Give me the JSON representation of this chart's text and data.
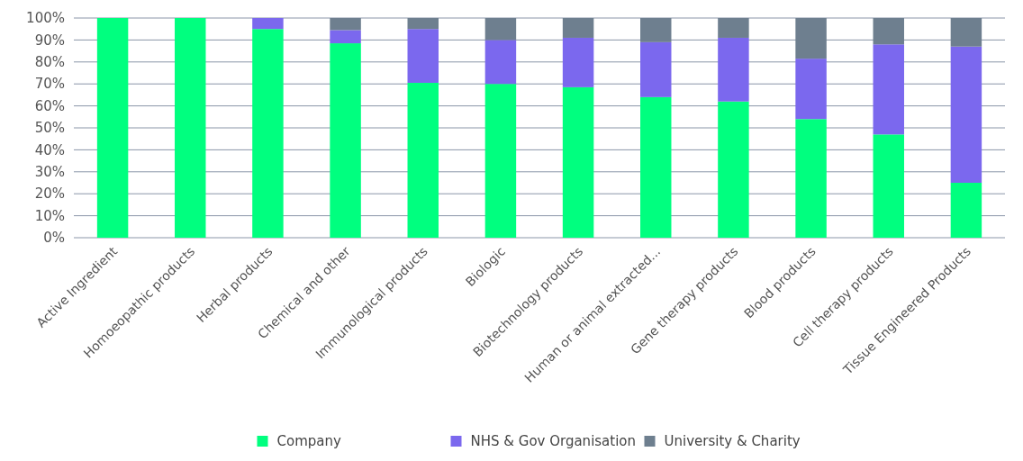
{
  "chart_data": {
    "type": "bar",
    "stacked": true,
    "categories": [
      "Active Ingredient",
      "Homoeopathic products",
      "Herbal products",
      "Chemical and other",
      "Immunological products",
      "Biologic",
      "Biotechnology products",
      "Human or animal extracted...",
      "Gene therapy products",
      "Blood products",
      "Cell therapy products",
      "Tissue Engineered Products"
    ],
    "series": [
      {
        "name": "Company",
        "color": "#00ff7f",
        "values": [
          100,
          100,
          95,
          88.5,
          70.5,
          70,
          68.5,
          64,
          62,
          54,
          47,
          25
        ]
      },
      {
        "name": "NHS & Gov Organisation",
        "color": "#7b68ee",
        "values": [
          0,
          0,
          5,
          6,
          24.5,
          20,
          22.5,
          25,
          29,
          27.5,
          41,
          62
        ]
      },
      {
        "name": "University & Charity",
        "color": "#6e7f8f",
        "values": [
          0,
          0,
          0,
          5.5,
          5,
          10,
          9,
          11,
          9,
          18.5,
          12,
          13
        ]
      }
    ],
    "ylim": [
      0,
      100
    ],
    "yticks": [
      {
        "value": 0,
        "label": "0%"
      },
      {
        "value": 10,
        "label": "10%"
      },
      {
        "value": 20,
        "label": "20%"
      },
      {
        "value": 30,
        "label": "30%"
      },
      {
        "value": 40,
        "label": "40%"
      },
      {
        "value": 50,
        "label": "50%"
      },
      {
        "value": 60,
        "label": "60%"
      },
      {
        "value": 70,
        "label": "70%"
      },
      {
        "value": 80,
        "label": "80%"
      },
      {
        "value": 90,
        "label": "90%"
      },
      {
        "value": 100,
        "label": "100%"
      }
    ],
    "grid": "y",
    "legend": "bottom"
  }
}
